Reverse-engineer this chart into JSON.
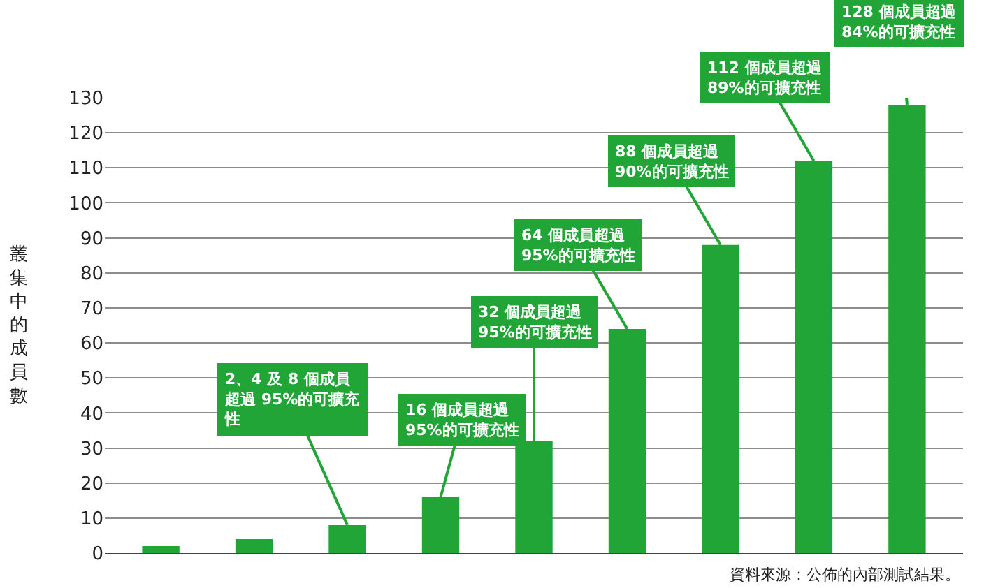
{
  "chart_data": {
    "type": "bar",
    "ylabel": "叢集中的成員數",
    "categories": [
      null,
      null,
      null,
      null,
      null,
      null,
      null,
      null,
      null
    ],
    "values": [
      2,
      4,
      8,
      16,
      32,
      64,
      88,
      112,
      128
    ],
    "color": "#22a537",
    "ylim": [
      0,
      130
    ],
    "yticks": [
      0,
      10,
      20,
      30,
      40,
      50,
      60,
      70,
      80,
      90,
      100,
      110,
      120,
      130
    ],
    "grid": "y",
    "tick_labels": "y",
    "annotations": [
      "2、4 及 8 個成員超過 95%的可擴充性",
      "16 個成員超過 95%的可擴充性",
      "32 個成員超過 95%的可擴充性",
      "64 個成員超過 95%的可擴充性",
      "88 個成員超過 90%的可擴充性",
      "112 個成員超過 89%的可擴充性",
      "128 個成員超過 84%的可擴充性",
      "資料來源：公佈的內部測試結果。"
    ]
  }
}
